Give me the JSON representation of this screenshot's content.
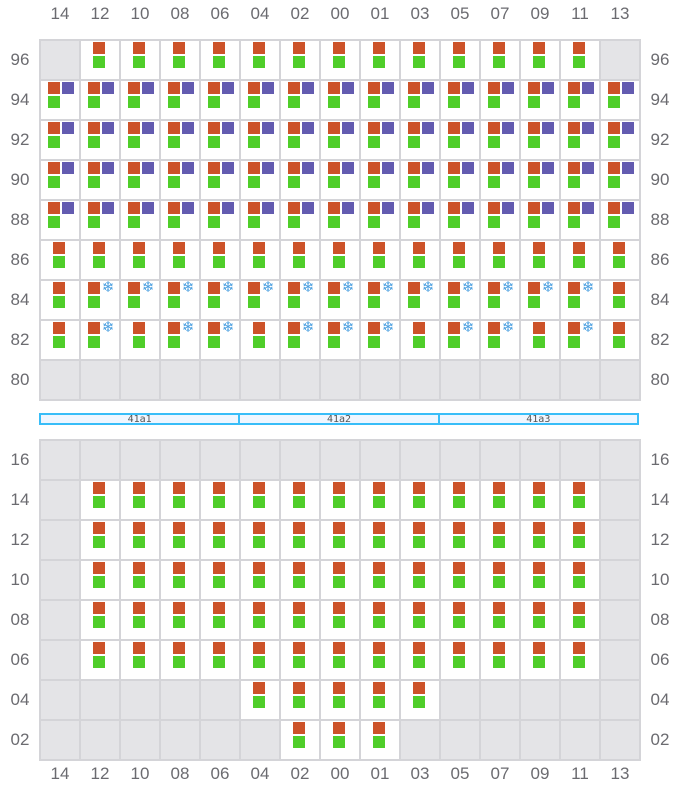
{
  "columns": [
    "14",
    "12",
    "10",
    "08",
    "06",
    "04",
    "02",
    "00",
    "01",
    "03",
    "05",
    "07",
    "09",
    "11",
    "13"
  ],
  "colors": {
    "orange": "#cc5229",
    "purple": "#635bb0",
    "green": "#4fce2a",
    "snowflake": "#4a9fe0",
    "empty": "#e4e4e7",
    "divider": "#38bdf8"
  },
  "top_grid": {
    "rows": [
      {
        "label": "96",
        "cells": [
          "empty",
          "single",
          "single",
          "single",
          "single",
          "single",
          "single",
          "single",
          "single",
          "single",
          "single",
          "single",
          "single",
          "single",
          "empty"
        ]
      },
      {
        "label": "94",
        "cells": [
          "double",
          "double",
          "double",
          "double",
          "double",
          "double",
          "double",
          "double",
          "double",
          "double",
          "double",
          "double",
          "double",
          "double",
          "double"
        ]
      },
      {
        "label": "92",
        "cells": [
          "double",
          "double",
          "double",
          "double",
          "double",
          "double",
          "double",
          "double",
          "double",
          "double",
          "double",
          "double",
          "double",
          "double",
          "double"
        ]
      },
      {
        "label": "90",
        "cells": [
          "double",
          "double",
          "double",
          "double",
          "double",
          "double",
          "double",
          "double",
          "double",
          "double",
          "double",
          "double",
          "double",
          "double",
          "double"
        ]
      },
      {
        "label": "88",
        "cells": [
          "double",
          "double",
          "double",
          "double",
          "double",
          "double",
          "double",
          "double",
          "double",
          "double",
          "double",
          "double",
          "double",
          "double",
          "double"
        ]
      },
      {
        "label": "86",
        "cells": [
          "single",
          "single",
          "single",
          "single",
          "single",
          "single",
          "single",
          "single",
          "single",
          "single",
          "single",
          "single",
          "single",
          "single",
          "single"
        ]
      },
      {
        "label": "84",
        "cells": [
          "single",
          "frost",
          "frost",
          "frost",
          "frost",
          "frost",
          "frost",
          "frost",
          "frost",
          "frost",
          "frost",
          "frost",
          "frost",
          "frost",
          "single"
        ]
      },
      {
        "label": "82",
        "cells": [
          "single",
          "frost",
          "single",
          "frost",
          "frost",
          "single",
          "frost",
          "frost",
          "frost",
          "single",
          "frost",
          "frost",
          "single",
          "frost",
          "single"
        ]
      },
      {
        "label": "80",
        "cells": [
          "empty",
          "empty",
          "empty",
          "empty",
          "empty",
          "empty",
          "empty",
          "empty",
          "empty",
          "empty",
          "empty",
          "empty",
          "empty",
          "empty",
          "empty"
        ]
      }
    ]
  },
  "divider": {
    "segments": [
      "41a1",
      "41a2",
      "41a3"
    ]
  },
  "bottom_grid": {
    "rows": [
      {
        "label": "16",
        "cells": [
          "empty",
          "empty",
          "empty",
          "empty",
          "empty",
          "empty",
          "empty",
          "empty",
          "empty",
          "empty",
          "empty",
          "empty",
          "empty",
          "empty",
          "empty"
        ]
      },
      {
        "label": "14",
        "cells": [
          "empty",
          "single",
          "single",
          "single",
          "single",
          "single",
          "single",
          "single",
          "single",
          "single",
          "single",
          "single",
          "single",
          "single",
          "empty"
        ]
      },
      {
        "label": "12",
        "cells": [
          "empty",
          "single",
          "single",
          "single",
          "single",
          "single",
          "single",
          "single",
          "single",
          "single",
          "single",
          "single",
          "single",
          "single",
          "empty"
        ]
      },
      {
        "label": "10",
        "cells": [
          "empty",
          "single",
          "single",
          "single",
          "single",
          "single",
          "single",
          "single",
          "single",
          "single",
          "single",
          "single",
          "single",
          "single",
          "empty"
        ]
      },
      {
        "label": "08",
        "cells": [
          "empty",
          "single",
          "single",
          "single",
          "single",
          "single",
          "single",
          "single",
          "single",
          "single",
          "single",
          "single",
          "single",
          "single",
          "empty"
        ]
      },
      {
        "label": "06",
        "cells": [
          "empty",
          "single",
          "single",
          "single",
          "single",
          "single",
          "single",
          "single",
          "single",
          "single",
          "single",
          "single",
          "single",
          "single",
          "empty"
        ]
      },
      {
        "label": "04",
        "cells": [
          "empty",
          "empty",
          "empty",
          "empty",
          "empty",
          "single",
          "single",
          "single",
          "single",
          "single",
          "empty",
          "empty",
          "empty",
          "empty",
          "empty"
        ]
      },
      {
        "label": "02",
        "cells": [
          "empty",
          "empty",
          "empty",
          "empty",
          "empty",
          "empty",
          "single",
          "single",
          "single",
          "empty",
          "empty",
          "empty",
          "empty",
          "empty",
          "empty"
        ]
      }
    ]
  },
  "snowflake_glyph": "❄"
}
